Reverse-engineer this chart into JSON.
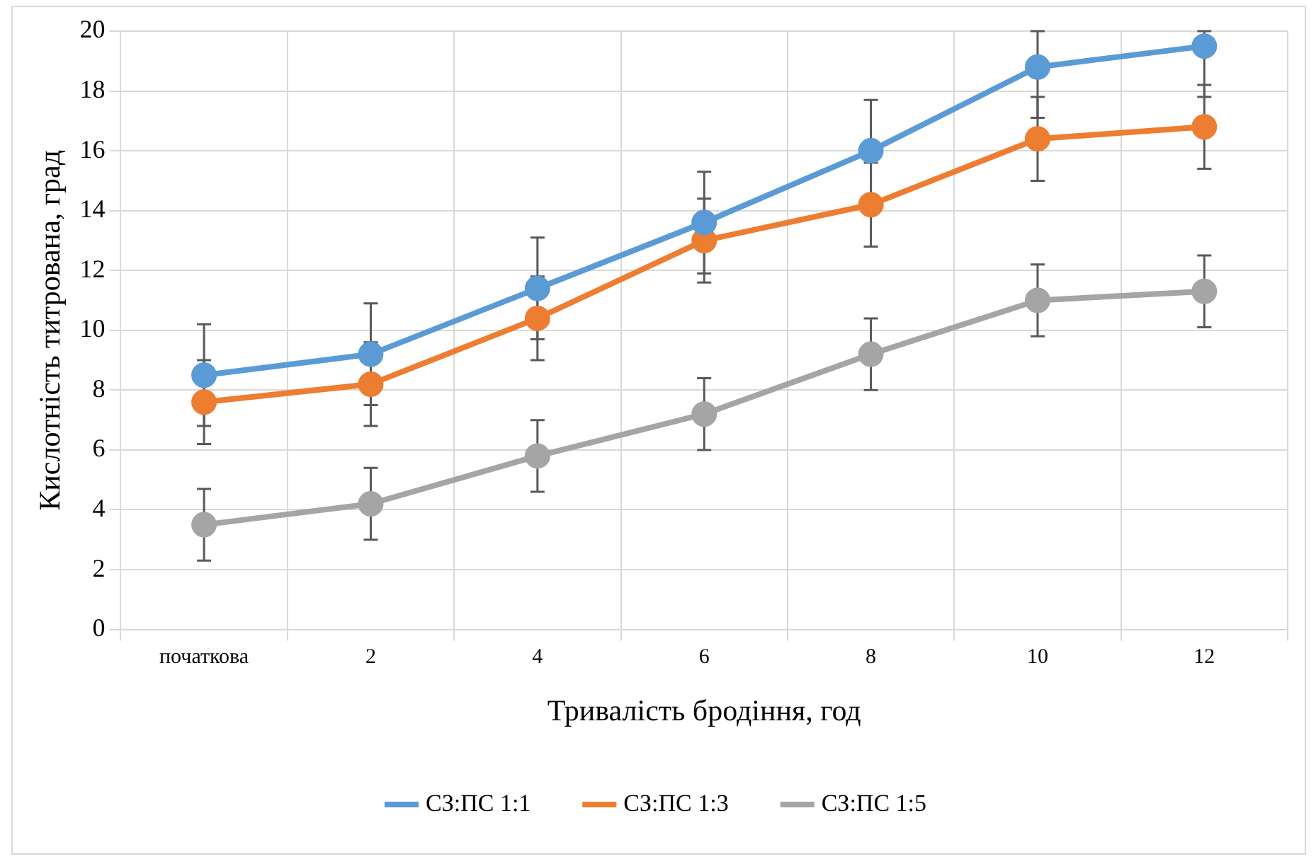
{
  "chart_data": {
    "type": "line",
    "xlabel": "Тривалість бродіння, год",
    "ylabel": "Кислотність титрована, град",
    "categories": [
      "початкова",
      "2",
      "4",
      "6",
      "8",
      "10",
      "12"
    ],
    "ylim": [
      0,
      20
    ],
    "yticks": [
      0,
      2,
      4,
      6,
      8,
      10,
      12,
      14,
      16,
      18,
      20
    ],
    "grid": true,
    "legend": "bottom",
    "marker": "circle",
    "line_style": "solid",
    "series": [
      {
        "name": "СЗ:ПС 1:1",
        "color": "#5b9bd5",
        "values": [
          8.5,
          9.2,
          11.4,
          13.6,
          16.0,
          18.8,
          19.5
        ],
        "errors": [
          1.7,
          1.7,
          1.7,
          1.7,
          1.7,
          [
            17.1,
            20
          ],
          [
            17.8,
            20
          ]
        ]
      },
      {
        "name": "СЗ:ПС 1:3",
        "color": "#ed7d31",
        "values": [
          7.6,
          8.2,
          10.4,
          13.0,
          14.2,
          16.4,
          16.8
        ],
        "errors": [
          1.4,
          1.4,
          1.4,
          1.4,
          1.4,
          1.4,
          1.4
        ]
      },
      {
        "name": "СЗ:ПС 1:5",
        "color": "#a5a5a5",
        "values": [
          3.5,
          4.2,
          5.8,
          7.2,
          9.2,
          11.0,
          11.3
        ],
        "errors": [
          1.2,
          1.2,
          1.2,
          1.2,
          1.2,
          1.2,
          1.2
        ]
      }
    ]
  }
}
